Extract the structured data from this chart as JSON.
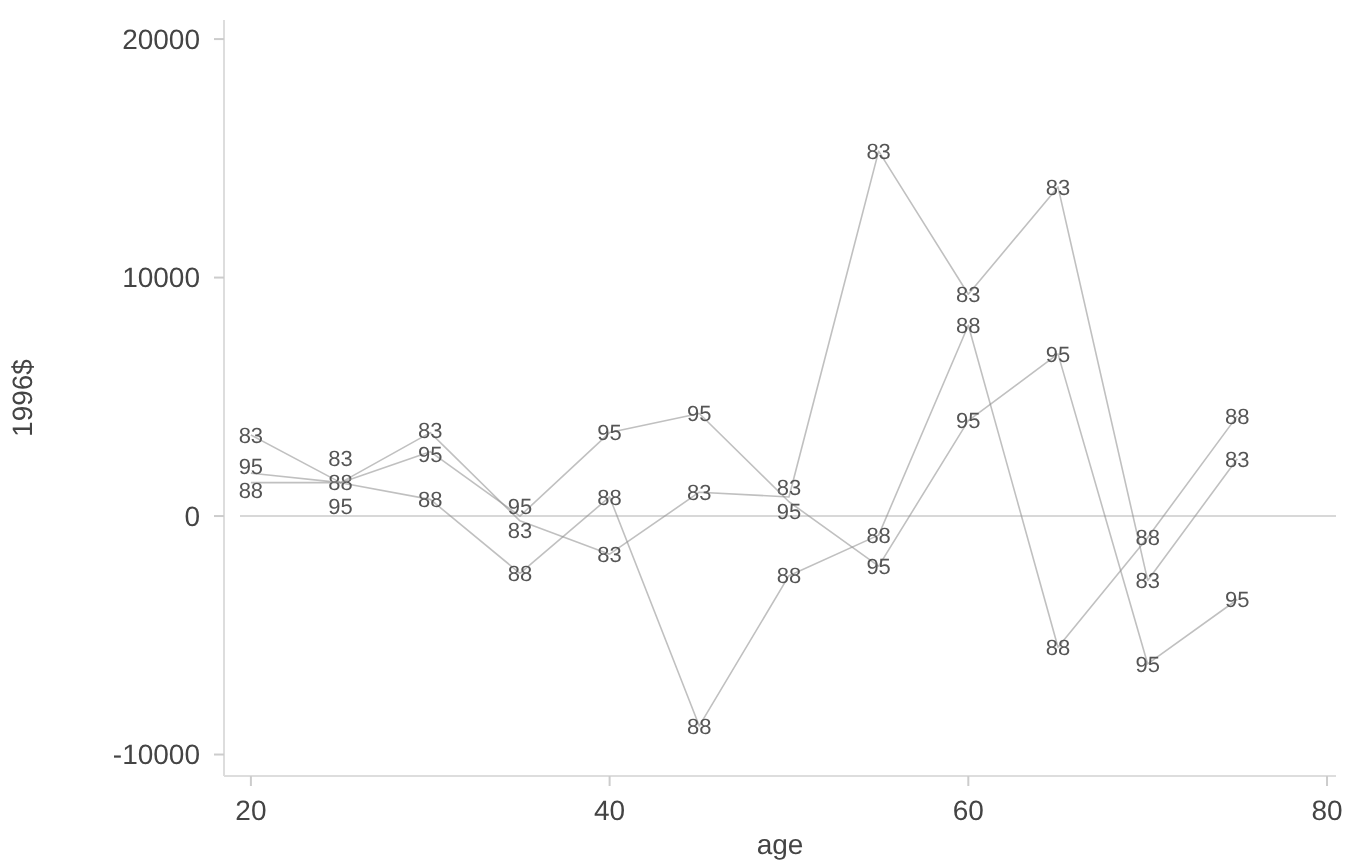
{
  "chart_data": {
    "type": "line",
    "xlabel": "age",
    "ylabel": "1996$",
    "x": [
      20,
      25,
      30,
      35,
      40,
      45,
      50,
      55,
      60,
      65,
      70,
      75
    ],
    "series": [
      {
        "name": "83",
        "color": "#8c8c8c",
        "values": [
          3400,
          1400,
          3500,
          -200,
          -1600,
          1000,
          800,
          15300,
          9300,
          13800,
          -2700,
          2400
        ]
      },
      {
        "name": "88",
        "color": "#8c8c8c",
        "values": [
          1400,
          1400,
          700,
          -2400,
          800,
          -8800,
          -2500,
          -800,
          8000,
          -5500,
          -900,
          4200
        ]
      },
      {
        "name": "95",
        "color": "#8c8c8c",
        "values": [
          1800,
          1400,
          2700,
          0,
          3500,
          4300,
          600,
          -2100,
          4000,
          6800,
          -6200,
          -3500
        ]
      }
    ],
    "xlim": [
      18.5,
      80.5
    ],
    "xticks": [
      20,
      40,
      60,
      80
    ],
    "ylim": [
      -10900,
      20800
    ],
    "yticks": [
      -10000,
      0,
      10000,
      20000
    ],
    "ref_lines": [
      {
        "axis": "y",
        "value": 0,
        "color": "#d8d8d8"
      }
    ],
    "grid": false,
    "legend": false
  }
}
